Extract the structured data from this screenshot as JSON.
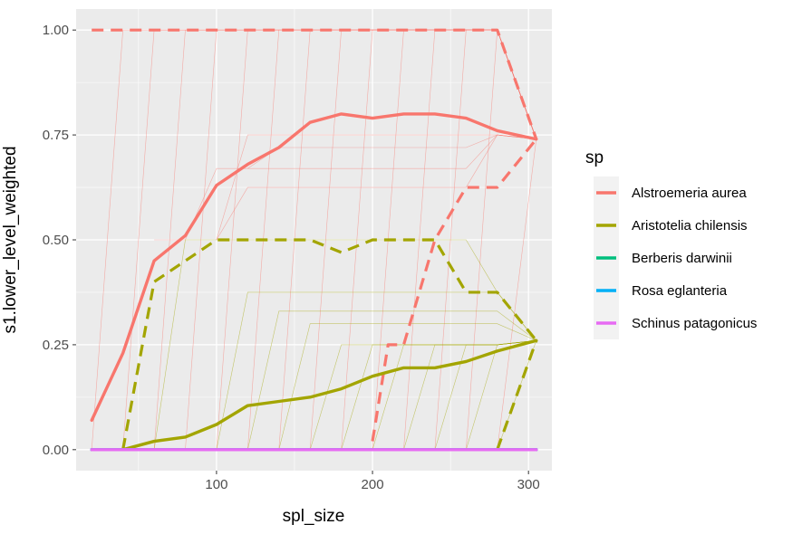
{
  "chart_data": {
    "type": "line",
    "title": "",
    "xlabel": "spl_size",
    "ylabel": "s1.lower_level_weighted",
    "xlim": [
      10,
      315
    ],
    "ylim": [
      -0.05,
      1.05
    ],
    "x_ticks": [
      100,
      200,
      300
    ],
    "x_tick_labels": [
      "100",
      "200",
      "300"
    ],
    "y_ticks": [
      0,
      0.25,
      0.5,
      0.75,
      1.0
    ],
    "y_tick_labels": [
      "0.00",
      "0.25",
      "0.50",
      "0.75",
      "1.00"
    ],
    "grid": true,
    "legend": {
      "title": "sp",
      "position": "right",
      "entries": [
        {
          "label": "Alstroemeria aurea",
          "color": "#F8766D"
        },
        {
          "label": "Aristotelia chilensis",
          "color": "#A3A500"
        },
        {
          "label": "Berberis darwinii",
          "color": "#00BF7D"
        },
        {
          "label": "Rosa eglanteria",
          "color": "#00B0F6"
        },
        {
          "label": "Schinus patagonicus",
          "color": "#E76BF3"
        }
      ]
    },
    "mean_series": [
      {
        "name": "Alstroemeria aurea",
        "color": "#F8766D",
        "x": [
          20,
          40,
          60,
          80,
          100,
          120,
          140,
          160,
          180,
          200,
          220,
          240,
          260,
          280,
          305
        ],
        "y": [
          0.07,
          0.23,
          0.45,
          0.51,
          0.63,
          0.68,
          0.72,
          0.78,
          0.8,
          0.79,
          0.8,
          0.8,
          0.79,
          0.76,
          0.74
        ]
      },
      {
        "name": "Aristotelia chilensis",
        "color": "#A3A500",
        "x": [
          40,
          60,
          80,
          100,
          120,
          140,
          160,
          180,
          200,
          220,
          240,
          260,
          280,
          305
        ],
        "y": [
          0.0,
          0.02,
          0.03,
          0.06,
          0.105,
          0.115,
          0.125,
          0.145,
          0.175,
          0.195,
          0.195,
          0.21,
          0.235,
          0.26
        ]
      },
      {
        "name": "Berberis darwinii",
        "color": "#00BF7D",
        "x": [
          20,
          305
        ],
        "y": [
          0.0,
          0.0
        ]
      },
      {
        "name": "Rosa eglanteria",
        "color": "#00B0F6",
        "x": [
          20,
          305
        ],
        "y": [
          0.0,
          0.0
        ]
      },
      {
        "name": "Schinus patagonicus",
        "color": "#E76BF3",
        "x": [
          20,
          305
        ],
        "y": [
          0.0,
          0.0
        ]
      }
    ],
    "upper_quantile_series": [
      {
        "name": "Alstroemeria aurea",
        "color": "#F8766D",
        "x": [
          20,
          40,
          60,
          80,
          100,
          120,
          140,
          160,
          180,
          200,
          220,
          240,
          260,
          280,
          305
        ],
        "y": [
          1.0,
          1.0,
          1.0,
          1.0,
          1.0,
          1.0,
          1.0,
          1.0,
          1.0,
          1.0,
          1.0,
          1.0,
          1.0,
          1.0,
          0.74
        ]
      },
      {
        "name": "Aristotelia chilensis",
        "color": "#A3A500",
        "x": [
          40,
          60,
          80,
          100,
          120,
          140,
          160,
          180,
          200,
          220,
          240,
          260,
          280,
          305
        ],
        "y": [
          0.0,
          0.4,
          0.45,
          0.5,
          0.5,
          0.5,
          0.5,
          0.47,
          0.5,
          0.5,
          0.5,
          0.375,
          0.375,
          0.26
        ]
      }
    ],
    "lower_quantile_series": [
      {
        "name": "Alstroemeria aurea",
        "color": "#F8766D",
        "x": [
          200,
          210,
          220,
          240,
          260,
          280,
          305
        ],
        "y": [
          0.02,
          0.25,
          0.25,
          0.5,
          0.625,
          0.625,
          0.74
        ]
      },
      {
        "name": "Aristotelia chilensis",
        "color": "#A3A500",
        "x": [
          280,
          305
        ],
        "y": [
          0.0,
          0.26
        ]
      }
    ],
    "replicate_lines": [
      {
        "color": "#F8766D",
        "x": [
          20,
          40,
          60,
          80,
          100,
          120,
          140,
          160,
          180,
          200,
          220,
          240,
          260,
          280,
          305
        ],
        "y": [
          0.0,
          1.0,
          1.0,
          1.0,
          1.0,
          1.0,
          1.0,
          1.0,
          1.0,
          1.0,
          1.0,
          1.0,
          1.0,
          1.0,
          0.74
        ]
      },
      {
        "color": "#F8766D",
        "x": [
          40,
          60,
          80,
          100,
          120,
          140,
          160,
          180,
          200,
          220,
          240,
          260,
          280,
          305
        ],
        "y": [
          0.0,
          1.0,
          1.0,
          1.0,
          1.0,
          1.0,
          1.0,
          1.0,
          1.0,
          1.0,
          1.0,
          1.0,
          1.0,
          0.74
        ]
      },
      {
        "color": "#F8766D",
        "x": [
          60,
          80,
          100,
          120,
          140,
          160,
          180,
          200,
          220,
          240,
          260,
          280,
          305
        ],
        "y": [
          0.0,
          1.0,
          1.0,
          1.0,
          1.0,
          1.0,
          1.0,
          1.0,
          1.0,
          1.0,
          1.0,
          1.0,
          0.74
        ]
      },
      {
        "color": "#F8766D",
        "x": [
          80,
          100,
          120,
          140,
          160,
          180,
          200,
          220,
          240,
          260,
          280,
          305
        ],
        "y": [
          0.0,
          1.0,
          1.0,
          1.0,
          1.0,
          1.0,
          1.0,
          1.0,
          1.0,
          1.0,
          1.0,
          0.74
        ]
      },
      {
        "color": "#F8766D",
        "x": [
          100,
          120,
          140,
          160,
          180,
          200,
          220,
          240,
          260,
          280,
          305
        ],
        "y": [
          0.0,
          1.0,
          1.0,
          1.0,
          1.0,
          1.0,
          1.0,
          1.0,
          1.0,
          1.0,
          0.74
        ]
      },
      {
        "color": "#F8766D",
        "x": [
          120,
          140,
          160,
          180,
          200,
          220,
          240,
          260,
          280,
          305
        ],
        "y": [
          0.0,
          1.0,
          1.0,
          1.0,
          1.0,
          1.0,
          1.0,
          1.0,
          1.0,
          0.74
        ]
      },
      {
        "color": "#F8766D",
        "x": [
          140,
          160,
          180,
          200,
          220,
          240,
          260,
          280,
          305
        ],
        "y": [
          0.0,
          1.0,
          1.0,
          1.0,
          1.0,
          1.0,
          1.0,
          1.0,
          0.74
        ]
      },
      {
        "color": "#F8766D",
        "x": [
          160,
          180,
          200,
          220,
          240,
          260,
          280,
          305
        ],
        "y": [
          0.0,
          1.0,
          1.0,
          1.0,
          1.0,
          1.0,
          1.0,
          0.74
        ]
      },
      {
        "color": "#F8766D",
        "x": [
          180,
          200,
          220,
          240,
          260,
          280,
          305
        ],
        "y": [
          0.0,
          1.0,
          1.0,
          1.0,
          1.0,
          1.0,
          0.74
        ]
      },
      {
        "color": "#F8766D",
        "x": [
          200,
          220,
          240,
          260,
          280,
          305
        ],
        "y": [
          0.0,
          1.0,
          1.0,
          1.0,
          1.0,
          0.74
        ]
      },
      {
        "color": "#F8766D",
        "x": [
          220,
          240,
          260,
          280,
          305
        ],
        "y": [
          0.0,
          1.0,
          1.0,
          1.0,
          0.74
        ]
      },
      {
        "color": "#F8766D",
        "x": [
          240,
          260,
          280,
          305
        ],
        "y": [
          0.0,
          1.0,
          1.0,
          0.74
        ]
      },
      {
        "color": "#F8766D",
        "x": [
          260,
          280,
          305
        ],
        "y": [
          0.0,
          1.0,
          0.74
        ]
      },
      {
        "color": "#F8766D",
        "x": [
          280,
          305
        ],
        "y": [
          0.0,
          0.74
        ]
      },
      {
        "color": "#F8766D",
        "x": [
          100,
          120,
          140,
          160,
          180,
          200,
          220,
          240,
          260,
          280,
          305
        ],
        "y": [
          0.5,
          0.625,
          0.625,
          0.625,
          0.625,
          0.625,
          0.625,
          0.625,
          0.625,
          0.75,
          0.74
        ]
      },
      {
        "color": "#F8766D",
        "x": [
          100,
          120,
          140,
          160,
          180,
          200,
          220,
          240,
          260,
          280,
          305
        ],
        "y": [
          0.5,
          0.75,
          0.75,
          0.75,
          0.75,
          0.75,
          0.75,
          0.75,
          0.75,
          0.75,
          0.74
        ]
      },
      {
        "color": "#F8766D",
        "x": [
          120,
          140,
          160,
          180,
          200,
          220,
          240,
          260,
          280,
          305
        ],
        "y": [
          0.67,
          0.72,
          0.72,
          0.72,
          0.72,
          0.72,
          0.72,
          0.72,
          0.75,
          0.74
        ]
      },
      {
        "color": "#F8766D",
        "x": [
          60,
          80,
          100,
          120,
          140,
          160,
          180,
          200,
          220,
          240,
          260,
          280,
          305
        ],
        "y": [
          0.5,
          0.5,
          0.67,
          0.67,
          0.67,
          0.67,
          0.67,
          0.67,
          0.67,
          0.67,
          0.67,
          0.75,
          0.74
        ]
      },
      {
        "color": "#A3A500",
        "x": [
          60,
          80,
          100,
          120,
          140,
          160,
          180,
          200,
          220,
          240,
          260,
          280,
          305
        ],
        "y": [
          0.0,
          0.5,
          0.5,
          0.5,
          0.5,
          0.5,
          0.5,
          0.5,
          0.5,
          0.5,
          0.5,
          0.375,
          0.26
        ]
      },
      {
        "color": "#A3A500",
        "x": [
          100,
          120,
          140,
          160,
          180,
          200,
          220,
          240,
          260,
          280,
          305
        ],
        "y": [
          0.0,
          0.375,
          0.375,
          0.375,
          0.375,
          0.375,
          0.375,
          0.375,
          0.375,
          0.375,
          0.26
        ]
      },
      {
        "color": "#A3A500",
        "x": [
          120,
          140,
          160,
          180,
          200,
          220,
          240,
          260,
          280,
          305
        ],
        "y": [
          0.0,
          0.33,
          0.33,
          0.33,
          0.33,
          0.33,
          0.33,
          0.33,
          0.33,
          0.26
        ]
      },
      {
        "color": "#A3A500",
        "x": [
          140,
          160,
          180,
          200,
          220,
          240,
          260,
          280,
          305
        ],
        "y": [
          0.0,
          0.3,
          0.3,
          0.3,
          0.3,
          0.3,
          0.3,
          0.3,
          0.26
        ]
      },
      {
        "color": "#A3A500",
        "x": [
          160,
          180,
          200,
          220,
          240,
          260,
          280,
          305
        ],
        "y": [
          0.0,
          0.25,
          0.25,
          0.25,
          0.25,
          0.25,
          0.25,
          0.26
        ]
      },
      {
        "color": "#A3A500",
        "x": [
          180,
          200,
          220,
          240,
          260,
          280,
          305
        ],
        "y": [
          0.0,
          0.25,
          0.25,
          0.25,
          0.25,
          0.25,
          0.26
        ]
      },
      {
        "color": "#A3A500",
        "x": [
          200,
          220,
          240,
          260,
          280,
          305
        ],
        "y": [
          0.0,
          0.25,
          0.25,
          0.25,
          0.25,
          0.26
        ]
      },
      {
        "color": "#A3A500",
        "x": [
          220,
          240,
          260,
          280,
          305
        ],
        "y": [
          0.0,
          0.25,
          0.25,
          0.25,
          0.26
        ]
      },
      {
        "color": "#A3A500",
        "x": [
          240,
          260,
          280,
          305
        ],
        "y": [
          0.0,
          0.25,
          0.25,
          0.26
        ]
      },
      {
        "color": "#A3A500",
        "x": [
          260,
          280,
          305
        ],
        "y": [
          0.0,
          0.25,
          0.26
        ]
      },
      {
        "color": "#A3A500",
        "x": [
          280,
          305
        ],
        "y": [
          0.0,
          0.26
        ]
      }
    ]
  }
}
